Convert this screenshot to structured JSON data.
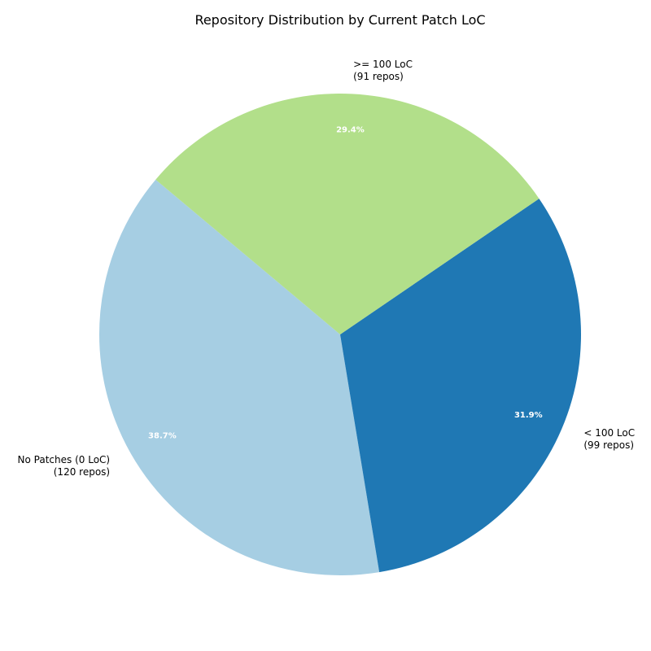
{
  "chart_data": {
    "type": "pie",
    "title": "Repository Distribution by Current Patch LoC",
    "slices": [
      {
        "name": "No Patches (0 LoC)",
        "count_label": "(120 repos)",
        "value": 120,
        "percent_label": "38.7%",
        "color": "#a6cee3"
      },
      {
        "name": "< 100 LoC",
        "count_label": "(99 repos)",
        "value": 99,
        "percent_label": "31.9%",
        "color": "#1f78b4"
      },
      {
        "name": ">= 100 LoC",
        "count_label": "(91 repos)",
        "value": 91,
        "percent_label": "29.4%",
        "color": "#b2df8a"
      }
    ],
    "start_angle_deg": 140,
    "direction": "counterclockwise",
    "legend": "none"
  }
}
